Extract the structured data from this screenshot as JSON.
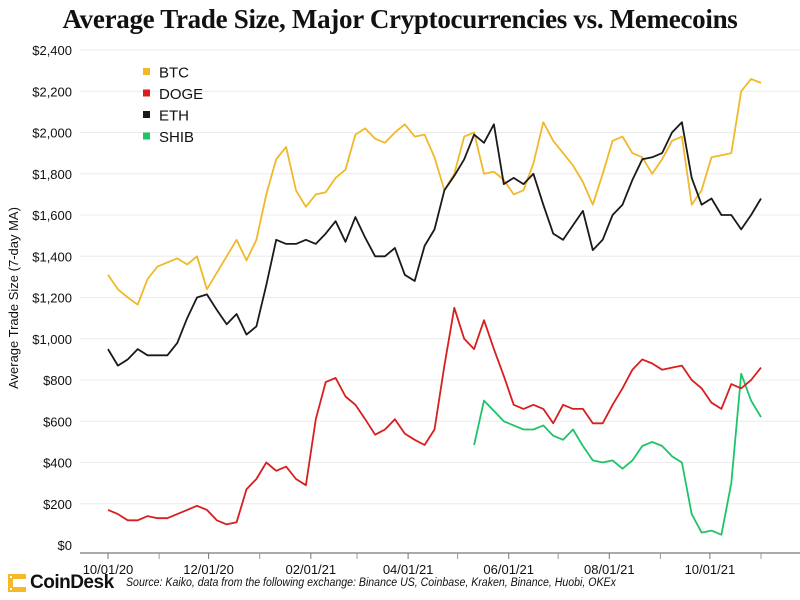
{
  "chart_data": {
    "type": "line",
    "title": "Average Trade Size, Major Cryptocurrencies vs. Memecoins",
    "ylabel": "Average Trade Size (7-day MA)",
    "xlabel": "",
    "ylim": [
      0,
      2400
    ],
    "xlim": [
      "2020-09-20",
      "2021-11-20"
    ],
    "grid": true,
    "legend_position": "top-left",
    "y_ticks": [
      {
        "value": 0,
        "label": "$0"
      },
      {
        "value": 200,
        "label": "$200"
      },
      {
        "value": 400,
        "label": "$400"
      },
      {
        "value": 600,
        "label": "$600"
      },
      {
        "value": 800,
        "label": "$800"
      },
      {
        "value": 1000,
        "label": "$1,000"
      },
      {
        "value": 1200,
        "label": "$1,200"
      },
      {
        "value": 1400,
        "label": "$1,400"
      },
      {
        "value": 1600,
        "label": "$1,600"
      },
      {
        "value": 1800,
        "label": "$1,800"
      },
      {
        "value": 2000,
        "label": "$2,000"
      },
      {
        "value": 2200,
        "label": "$2,200"
      },
      {
        "value": 2400,
        "label": "$2,400"
      }
    ],
    "x_ticks": [
      {
        "date": "2020-10-01",
        "label": "10/01/20"
      },
      {
        "date": "2020-12-01",
        "label": "12/01/20"
      },
      {
        "date": "2021-02-01",
        "label": "02/01/21"
      },
      {
        "date": "2021-04-01",
        "label": "04/01/21"
      },
      {
        "date": "2021-06-01",
        "label": "06/01/21"
      },
      {
        "date": "2021-08-01",
        "label": "08/01/21"
      },
      {
        "date": "2021-10-01",
        "label": "10/01/21"
      }
    ],
    "x_minor_ticks": [
      "2020-11-01",
      "2021-01-01",
      "2021-03-01",
      "2021-05-01",
      "2021-07-01",
      "2021-09-01",
      "2021-11-01"
    ],
    "dates": [
      "2020-10-01",
      "2020-10-07",
      "2020-10-13",
      "2020-10-19",
      "2020-10-25",
      "2020-10-31",
      "2020-11-06",
      "2020-11-12",
      "2020-11-18",
      "2020-11-24",
      "2020-11-30",
      "2020-12-06",
      "2020-12-12",
      "2020-12-18",
      "2020-12-24",
      "2020-12-30",
      "2021-01-05",
      "2021-01-11",
      "2021-01-17",
      "2021-01-23",
      "2021-01-29",
      "2021-02-04",
      "2021-02-10",
      "2021-02-16",
      "2021-02-22",
      "2021-02-28",
      "2021-03-06",
      "2021-03-12",
      "2021-03-18",
      "2021-03-24",
      "2021-03-30",
      "2021-04-05",
      "2021-04-11",
      "2021-04-17",
      "2021-04-23",
      "2021-04-29",
      "2021-05-05",
      "2021-05-11",
      "2021-05-17",
      "2021-05-23",
      "2021-05-29",
      "2021-06-04",
      "2021-06-10",
      "2021-06-16",
      "2021-06-22",
      "2021-06-28",
      "2021-07-04",
      "2021-07-10",
      "2021-07-16",
      "2021-07-22",
      "2021-07-28",
      "2021-08-03",
      "2021-08-09",
      "2021-08-15",
      "2021-08-21",
      "2021-08-27",
      "2021-09-02",
      "2021-09-08",
      "2021-09-14",
      "2021-09-20",
      "2021-09-26",
      "2021-10-02",
      "2021-10-08",
      "2021-10-14",
      "2021-10-20",
      "2021-10-26",
      "2021-11-01"
    ],
    "series": [
      {
        "name": "BTC",
        "color": "#f0b92a",
        "values": [
          1310,
          1240,
          1200,
          1165,
          1290,
          1350,
          1370,
          1390,
          1360,
          1400,
          1240,
          1320,
          1400,
          1480,
          1380,
          1480,
          1700,
          1870,
          1930,
          1720,
          1640,
          1700,
          1710,
          1780,
          1820,
          1990,
          2020,
          1970,
          1950,
          2000,
          2040,
          1980,
          1990,
          1880,
          1720,
          1800,
          1980,
          2000,
          1800,
          1810,
          1770,
          1700,
          1720,
          1850,
          2050,
          1960,
          1900,
          1840,
          1760,
          1650,
          1800,
          1960,
          1980,
          1900,
          1880,
          1800,
          1870,
          1960,
          1980,
          1650,
          1720,
          1880,
          1890,
          1900,
          2200,
          2260,
          2240
        ]
      },
      {
        "name": "DOGE",
        "color": "#d81e1e",
        "values": [
          170,
          150,
          120,
          120,
          140,
          130,
          130,
          150,
          170,
          190,
          170,
          120,
          100,
          110,
          270,
          320,
          400,
          360,
          380,
          320,
          290,
          610,
          790,
          810,
          720,
          680,
          610,
          535,
          560,
          610,
          540,
          510,
          485,
          560,
          870,
          1150,
          1000,
          950,
          1090,
          950,
          820,
          680,
          660,
          680,
          660,
          590,
          680,
          660,
          660,
          590,
          590,
          680,
          760,
          850,
          900,
          880,
          850,
          860,
          870,
          800,
          760,
          690,
          660,
          780,
          760,
          800,
          860
        ]
      },
      {
        "name": "ETH",
        "color": "#1a1a1a",
        "values": [
          950,
          870,
          900,
          950,
          920,
          920,
          920,
          980,
          1100,
          1200,
          1215,
          1140,
          1070,
          1120,
          1020,
          1060,
          1260,
          1480,
          1460,
          1460,
          1480,
          1460,
          1510,
          1570,
          1470,
          1590,
          1490,
          1400,
          1400,
          1440,
          1310,
          1280,
          1450,
          1530,
          1720,
          1790,
          1870,
          1990,
          1950,
          2040,
          1750,
          1780,
          1750,
          1800,
          1650,
          1510,
          1480,
          1550,
          1620,
          1430,
          1480,
          1600,
          1650,
          1770,
          1870,
          1880,
          1900,
          2000,
          2050,
          1780,
          1650,
          1680,
          1600,
          1600,
          1530,
          1600,
          1680
        ]
      },
      {
        "name": "SHIB",
        "color": "#1fc46a",
        "values": [
          null,
          null,
          null,
          null,
          null,
          null,
          null,
          null,
          null,
          null,
          null,
          null,
          null,
          null,
          null,
          null,
          null,
          null,
          null,
          null,
          null,
          null,
          null,
          null,
          null,
          null,
          null,
          null,
          null,
          null,
          null,
          null,
          null,
          null,
          null,
          null,
          null,
          485,
          700,
          650,
          600,
          580,
          560,
          560,
          580,
          530,
          510,
          560,
          480,
          410,
          400,
          410,
          370,
          410,
          480,
          500,
          480,
          430,
          400,
          150,
          60,
          70,
          50,
          300,
          830,
          700,
          620
        ]
      }
    ]
  },
  "footer": {
    "brand": "CoinDesk",
    "source": "Source: Kaiko, data from the following exchange: Binance US, Coinbase, Kraken, Binance, Huobi, OKEx"
  }
}
